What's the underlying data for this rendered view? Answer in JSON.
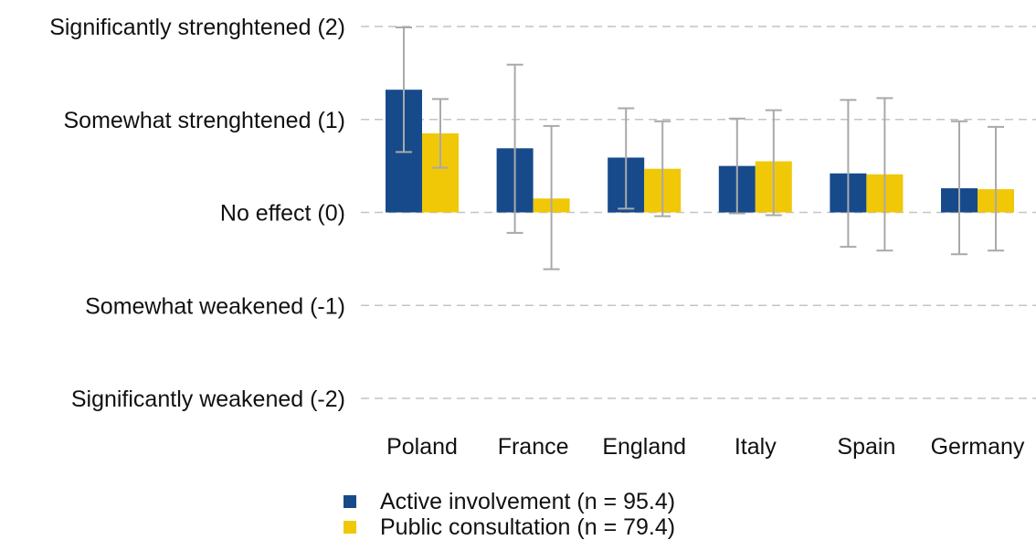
{
  "chart_data": {
    "type": "bar",
    "categories": [
      "Poland",
      "France",
      "England",
      "Italy",
      "Spain",
      "Germany"
    ],
    "ylim": [
      -2,
      2
    ],
    "yticks": [
      {
        "value": 2,
        "label": "Significantly strenghtened (2)"
      },
      {
        "value": 1,
        "label": "Somewhat strenghtened (1)"
      },
      {
        "value": 0,
        "label": "No effect (0)"
      },
      {
        "value": -1,
        "label": "Somewhat weakened (-1)"
      },
      {
        "value": -2,
        "label": "Significantly weakened (-2)"
      }
    ],
    "grid": true,
    "legend_position": "bottom",
    "series": [
      {
        "name": "Active involvement (n = 95.4)",
        "color": "#174a8b",
        "values": [
          1.32,
          0.69,
          0.59,
          0.5,
          0.42,
          0.26
        ],
        "error_low": [
          0.65,
          -0.22,
          0.04,
          -0.01,
          -0.37,
          -0.45
        ],
        "error_high": [
          1.99,
          1.59,
          1.12,
          1.01,
          1.21,
          0.98
        ]
      },
      {
        "name": "Public consultation (n = 79.4)",
        "color": "#f0c808",
        "values": [
          0.85,
          0.15,
          0.47,
          0.55,
          0.41,
          0.25
        ],
        "error_low": [
          0.48,
          -0.61,
          -0.04,
          -0.03,
          -0.41,
          -0.41
        ],
        "error_high": [
          1.22,
          0.93,
          0.98,
          1.1,
          1.23,
          0.92
        ]
      }
    ]
  }
}
